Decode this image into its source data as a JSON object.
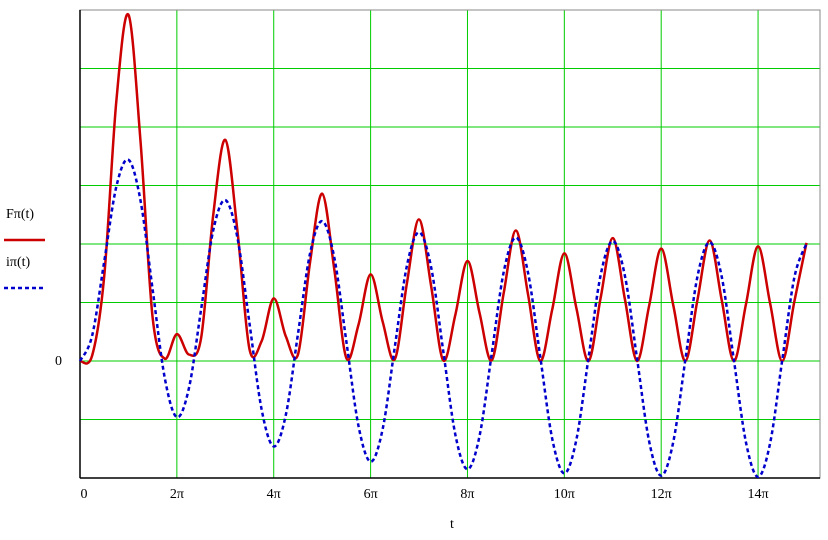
{
  "chart_data": {
    "type": "line",
    "x_label": "t",
    "x": [
      0,
      0.785,
      1.571,
      2.356,
      3.142,
      3.927,
      4.712,
      5.498,
      6.283,
      7.069,
      7.854,
      8.639,
      9.425,
      10.21,
      10.996,
      11.781,
      12.566,
      13.352,
      14.137,
      14.923,
      15.708,
      16.493,
      17.279,
      18.064,
      18.85,
      19.635,
      20.42,
      21.206,
      21.991,
      22.777,
      23.562,
      24.347,
      25.133,
      25.918,
      26.704,
      27.489,
      28.274,
      29.06,
      29.845,
      30.631,
      31.416,
      32.201,
      32.987,
      33.772,
      34.558,
      35.343,
      36.128,
      36.914,
      37.699,
      38.485,
      39.27,
      40.055,
      40.841,
      41.626,
      42.412,
      43.197,
      43.982,
      44.768,
      45.553,
      46.338,
      47.124
    ],
    "series": [
      {
        "name": "Fπ(t)",
        "color": "#cc0000",
        "dash": false,
        "values": [
          0,
          0.09,
          1.45,
          4.44,
          5.92,
          3.75,
          0.74,
          0.04,
          0.46,
          0.11,
          0.39,
          2.49,
          3.78,
          2.23,
          0.2,
          0.34,
          1.07,
          0.42,
          0.11,
          1.69,
          2.86,
          1.57,
          0.05,
          0.62,
          1.48,
          0.67,
          0.03,
          1.33,
          2.42,
          1.28,
          0.01,
          0.79,
          1.71,
          0.82,
          0.01,
          1.17,
          2.23,
          1.14,
          0,
          0.88,
          1.84,
          0.9,
          0,
          1.08,
          2.1,
          1.06,
          0,
          0.94,
          1.92,
          0.95,
          0,
          1.05,
          2.06,
          1.04,
          0,
          0.97,
          1.96,
          0.98,
          0,
          1.02,
          2.02
        ]
      },
      {
        "name": "iπ(t)",
        "color": "#0000cc",
        "dash": true,
        "values": [
          0,
          0.43,
          1.7,
          2.98,
          3.44,
          2.74,
          1.22,
          -0.29,
          -0.96,
          -0.46,
          0.88,
          2.23,
          2.75,
          2.11,
          0.64,
          -0.83,
          -1.46,
          -0.92,
          0.46,
          1.84,
          2.39,
          1.77,
          0.33,
          -1.11,
          -1.72,
          -1.16,
          0.24,
          1.63,
          2.2,
          1.6,
          0.17,
          -1.26,
          -1.85,
          -1.28,
          0.12,
          1.53,
          2.11,
          1.51,
          0.09,
          -1.33,
          -1.92,
          -1.34,
          0.06,
          1.47,
          2.05,
          1.46,
          0.05,
          -1.37,
          -1.96,
          -1.38,
          0.03,
          1.45,
          2.03,
          1.44,
          0.02,
          -1.39,
          -1.98,
          -1.4,
          0.02,
          1.43,
          2.01
        ]
      }
    ],
    "xlim": [
      0,
      48
    ],
    "ylim": [
      -2,
      6
    ],
    "xticks": [
      0,
      {
        "value": 6.283,
        "label": "2π"
      },
      {
        "value": 12.566,
        "label": "4π"
      },
      {
        "value": 18.85,
        "label": "6π"
      },
      {
        "value": 25.133,
        "label": "8π"
      },
      {
        "value": 31.416,
        "label": "10π"
      },
      {
        "value": 37.699,
        "label": "12π"
      },
      {
        "value": 43.982,
        "label": "14π"
      }
    ],
    "yticks": [
      0
    ],
    "ygrid": [
      -2,
      -1,
      0,
      1,
      2,
      3,
      4,
      5,
      6
    ],
    "grid": true,
    "grid_color": "#00cc00"
  }
}
